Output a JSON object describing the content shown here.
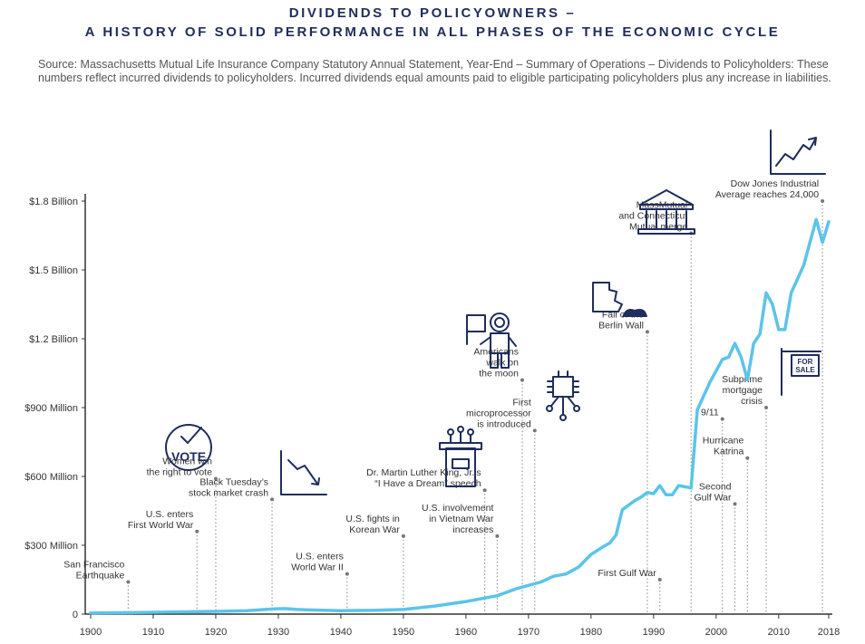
{
  "header": {
    "title_line1": "DIVIDENDS TO POLICYOWNERS –",
    "title_line2": "A HISTORY OF SOLID PERFORMANCE IN ALL PHASES OF THE ECONOMIC CYCLE",
    "source_note": "Source: Massachusetts Mutual Life Insurance Company Statutory Annual Statement, Year-End – Summary of Operations – Dividends to Policyholders: These numbers reflect incurred dividends to policyholders. Incurred dividends equal amounts paid to eligible participating policyholders plus any increase in liabilities."
  },
  "colors": {
    "line": "#5bc4ea",
    "title": "#1f2d5c",
    "axis": "#333333",
    "dots": "#999999"
  },
  "icons": {
    "vote_text": "VOTE",
    "for_sale_text_1": "FOR",
    "for_sale_text_2": "SALE"
  },
  "chart_data": {
    "type": "line",
    "xlim": [
      1900,
      2018
    ],
    "ylim": [
      0,
      1800
    ],
    "y_ticks": [
      {
        "value": 0,
        "label": "0"
      },
      {
        "value": 300,
        "label": "$300 Million"
      },
      {
        "value": 600,
        "label": "$600 Million"
      },
      {
        "value": 900,
        "label": "$900 Million"
      },
      {
        "value": 1200,
        "label": "$1.2 Billion"
      },
      {
        "value": 1500,
        "label": "$1.5 Billion"
      },
      {
        "value": 1800,
        "label": "$1.8 Billion"
      }
    ],
    "x_ticks": [
      1900,
      1910,
      1920,
      1930,
      1940,
      1950,
      1960,
      1970,
      1980,
      1990,
      2000,
      2010,
      2018
    ],
    "series": [
      {
        "x": [
          1900,
          1905,
          1910,
          1915,
          1920,
          1925,
          1929,
          1931,
          1933,
          1935,
          1940,
          1945,
          1950,
          1955,
          1960,
          1965,
          1968,
          1970,
          1972,
          1974,
          1976,
          1978,
          1980,
          1982,
          1983,
          1984,
          1985,
          1986,
          1987,
          1988,
          1989,
          1990,
          1991,
          1992,
          1993,
          1994,
          1995,
          1996,
          1997,
          1998,
          1999,
          2000,
          2001,
          2002,
          2003,
          2004,
          2005,
          2006,
          2007,
          2008,
          2009,
          2010,
          2011,
          2012,
          2013,
          2014,
          2015,
          2016,
          2017,
          2018
        ],
        "values": [
          5,
          6,
          8,
          10,
          12,
          15,
          22,
          24,
          20,
          18,
          15,
          16,
          20,
          35,
          55,
          80,
          110,
          125,
          140,
          165,
          175,
          205,
          260,
          295,
          310,
          345,
          455,
          475,
          495,
          510,
          530,
          525,
          560,
          520,
          520,
          560,
          555,
          550,
          890,
          950,
          1010,
          1060,
          1110,
          1120,
          1180,
          1120,
          1020,
          1180,
          1220,
          1400,
          1350,
          1240,
          1240,
          1400,
          1460,
          1520,
          1620,
          1720,
          1620,
          1710
        ]
      }
    ],
    "events": [
      {
        "year": 1906,
        "value": 140,
        "label": [
          "San Francisco",
          "Earthquake"
        ]
      },
      {
        "year": 1917,
        "value": 360,
        "label": [
          "U.S. enters",
          "First World War"
        ]
      },
      {
        "year": 1920,
        "value": 590,
        "label": [
          "Women win",
          "the right to vote"
        ]
      },
      {
        "year": 1929,
        "value": 500,
        "label": [
          "Black Tuesday’s",
          "stock market crash"
        ]
      },
      {
        "year": 1941,
        "value": 175,
        "label": [
          "U.S. enters",
          "World War II"
        ]
      },
      {
        "year": 1950,
        "value": 340,
        "label": [
          "U.S. fights in",
          "Korean War"
        ]
      },
      {
        "year": 1963,
        "value": 540,
        "label": [
          "Dr. Martin Luther King, Jr.’s",
          "“I Have a Dream” speech"
        ]
      },
      {
        "year": 1965,
        "value": 340,
        "label": [
          "U.S. involvement",
          "in Vietnam War",
          "increases"
        ]
      },
      {
        "year": 1969,
        "value": 1020,
        "label": [
          "Americans",
          "walk on",
          "the moon"
        ]
      },
      {
        "year": 1971,
        "value": 800,
        "label": [
          "First",
          "microprocessor",
          "is introduced"
        ]
      },
      {
        "year": 1989,
        "value": 1230,
        "label": [
          "Fall of the",
          "Berlin Wall"
        ]
      },
      {
        "year": 1991,
        "value": 150,
        "label": [
          "First Gulf War"
        ]
      },
      {
        "year": 1996,
        "value": 1660,
        "label": [
          "MassMutual",
          "and Connecticut",
          "Mutual merge"
        ]
      },
      {
        "year": 2001,
        "value": 850,
        "label": [
          "9/11"
        ]
      },
      {
        "year": 2003,
        "value": 480,
        "label": [
          "Second",
          "Gulf War"
        ]
      },
      {
        "year": 2005,
        "value": 680,
        "label": [
          "Hurricane",
          "Katrina"
        ]
      },
      {
        "year": 2008,
        "value": 900,
        "label": [
          "Subprime",
          "mortgage",
          "crisis"
        ]
      },
      {
        "year": 2017,
        "value": 1800,
        "label": [
          "Dow Jones Industrial",
          "Average reaches 24,000"
        ]
      }
    ]
  }
}
